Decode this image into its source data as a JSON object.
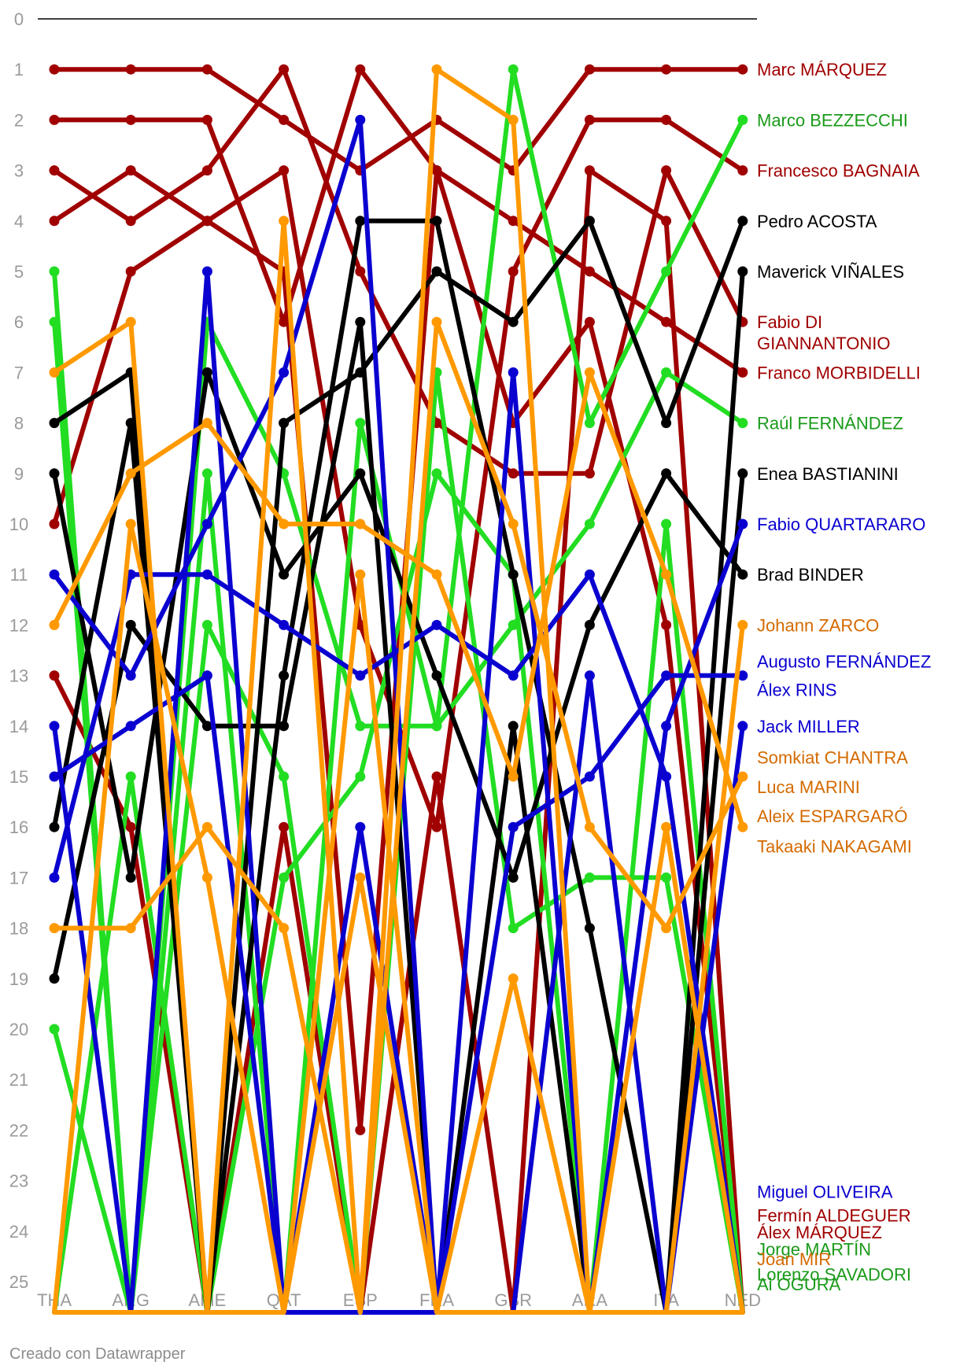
{
  "footer": {
    "credit": "Creado con Datawrapper"
  },
  "chart_data": {
    "type": "line",
    "title": "",
    "xlabel": "",
    "ylabel": "",
    "y_reversed": true,
    "ylim": [
      0,
      25
    ],
    "yticks": [
      0,
      1,
      2,
      3,
      4,
      5,
      6,
      7,
      8,
      9,
      10,
      11,
      12,
      13,
      14,
      15,
      16,
      17,
      18,
      19,
      20,
      21,
      22,
      23,
      24,
      25
    ],
    "categories": [
      "THA",
      "ARG",
      "AME",
      "QAT",
      "ESP",
      "FRA",
      "GBR",
      "ARA",
      "ITA",
      "NED"
    ],
    "colors": {
      "red": "#a00000",
      "green": "#22dd22",
      "black": "#000000",
      "blue": "#0a00d0",
      "orange": "#ff9900"
    },
    "label_colors": {
      "red": "#a00000",
      "green": "#1a9a1a",
      "black": "#000000",
      "blue": "#0a00d0",
      "orange": "#d46a00"
    },
    "series": [
      {
        "name": "Marc MÁRQUEZ",
        "color": "red",
        "values": [
          1,
          1,
          1,
          2,
          3,
          2,
          3,
          1,
          1,
          1
        ]
      },
      {
        "name": "Álex MÁRQUEZ",
        "color": "red",
        "values": [
          2,
          2,
          2,
          6,
          1,
          3,
          4,
          5,
          6,
          7
        ]
      },
      {
        "name": "Francesco BAGNAIA",
        "color": "red",
        "values": [
          3,
          4,
          3,
          1,
          5,
          8,
          9,
          9,
          3,
          6
        ]
      },
      {
        "name": "Franco MORBIDELLI",
        "color": "red",
        "values": [
          4,
          3,
          4,
          3,
          12,
          16,
          5,
          2,
          2,
          3
        ]
      },
      {
        "name": "Fabio DI GIANNANTONIO",
        "color": "red",
        "values": [
          10,
          5,
          4,
          5,
          22,
          3,
          8,
          6,
          12,
          24
        ]
      },
      {
        "name": "Fermín ALDEGUER",
        "color": "red",
        "values": [
          13,
          16,
          24,
          16,
          24,
          15,
          24,
          3,
          4,
          24
        ]
      },
      {
        "name": "Marco BEZZECCHI",
        "color": "green",
        "values": [
          5,
          24,
          9,
          24,
          8,
          14,
          1,
          8,
          5,
          2
        ]
      },
      {
        "name": "Raúl FERNÁNDEZ",
        "color": "green",
        "values": [
          6,
          24,
          6,
          9,
          14,
          14,
          12,
          10,
          7,
          8
        ]
      },
      {
        "name": "Lorenzo SAVADORI",
        "color": "green",
        "values": [
          20,
          24,
          12,
          15,
          24,
          7,
          18,
          17,
          17,
          24
        ]
      },
      {
        "name": "Ai OGURA",
        "color": "green",
        "values": [
          24,
          15,
          24,
          17,
          15,
          9,
          11,
          24,
          10,
          24
        ]
      },
      {
        "name": "Pedro ACOSTA",
        "color": "black",
        "values": [
          8,
          7,
          24,
          8,
          7,
          5,
          6,
          4,
          8,
          4
        ]
      },
      {
        "name": "Maverick VIÑALES",
        "color": "black",
        "values": [
          16,
          8,
          24,
          13,
          4,
          4,
          11,
          18,
          24,
          5
        ]
      },
      {
        "name": "Enea BASTIANINI",
        "color": "black",
        "values": [
          9,
          17,
          7,
          11,
          9,
          13,
          17,
          12,
          9,
          11
        ]
      },
      {
        "name": "Brad BINDER",
        "color": "black",
        "values": [
          19,
          12,
          14,
          14,
          6,
          24,
          14,
          24,
          24,
          9
        ]
      },
      {
        "name": "Fabio QUARTARARO",
        "color": "blue",
        "values": [
          14,
          24,
          5,
          24,
          16,
          24,
          7,
          24,
          14,
          10
        ]
      },
      {
        "name": "Jack MILLER",
        "color": "blue",
        "values": [
          11,
          13,
          10,
          7,
          2,
          24,
          16,
          15,
          13,
          13
        ]
      },
      {
        "name": "Miguel OLIVEIRA",
        "color": "blue",
        "values": [
          17,
          11,
          11,
          12,
          13,
          12,
          13,
          11,
          15,
          24
        ]
      },
      {
        "name": "Álex RINS",
        "color": "blue",
        "values": [
          15,
          14,
          13,
          24,
          24,
          24,
          24,
          13,
          24,
          14
        ]
      },
      {
        "name": "Johann ZARCO",
        "color": "orange",
        "values": [
          7,
          6,
          24,
          4,
          24,
          1,
          2,
          24,
          24,
          12
        ]
      },
      {
        "name": "Aleix ESPARGARÓ",
        "color": "orange",
        "values": [
          12,
          9,
          8,
          10,
          10,
          11,
          15,
          7,
          11,
          16
        ]
      },
      {
        "name": "Luca MARINI",
        "color": "orange",
        "values": [
          18,
          18,
          16,
          18,
          24,
          6,
          10,
          16,
          18,
          15
        ]
      },
      {
        "name": "Joan MIR",
        "color": "orange",
        "values": [
          24,
          10,
          17,
          24,
          11,
          24,
          19,
          24,
          16,
          24
        ]
      },
      {
        "name": "Takaaki NAKAGAMI",
        "color": "orange",
        "values": [
          24,
          24,
          24,
          24,
          17,
          24,
          24,
          24,
          24,
          24
        ]
      }
    ],
    "right_labels": [
      {
        "text": "Marc MÁRQUEZ",
        "color": "red",
        "y": 1
      },
      {
        "text": "Marco BEZZECCHI",
        "color": "green",
        "y": 2
      },
      {
        "text": "Francesco BAGNAIA",
        "color": "red",
        "y": 3
      },
      {
        "text": "Pedro ACOSTA",
        "color": "black",
        "y": 4
      },
      {
        "text": "Maverick VIÑALES",
        "color": "black",
        "y": 5
      },
      {
        "text": "Fabio DI",
        "color": "red",
        "y": 6
      },
      {
        "text": "GIANNANTONIO",
        "color": "red",
        "y": 6.42
      },
      {
        "text": "Franco MORBIDELLI",
        "color": "red",
        "y": 7
      },
      {
        "text": "Raúl FERNÁNDEZ",
        "color": "green",
        "y": 8
      },
      {
        "text": "Enea BASTIANINI",
        "color": "black",
        "y": 9
      },
      {
        "text": "Fabio QUARTARARO",
        "color": "blue",
        "y": 10
      },
      {
        "text": "Brad BINDER",
        "color": "black",
        "y": 11
      },
      {
        "text": "Johann ZARCO",
        "color": "orange",
        "y": 12
      },
      {
        "text": "Augusto FERNÁNDEZ",
        "color": "blue",
        "y": 12.72
      },
      {
        "text": "Álex RINS",
        "color": "blue",
        "y": 13.28
      },
      {
        "text": "Jack MILLER",
        "color": "blue",
        "y": 14
      },
      {
        "text": "Somkiat CHANTRA",
        "color": "orange",
        "y": 14.62
      },
      {
        "text": "Luca MARINI",
        "color": "orange",
        "y": 15.2
      },
      {
        "text": "Aleix ESPARGARÓ",
        "color": "orange",
        "y": 15.78
      },
      {
        "text": "Takaaki NAKAGAMI",
        "color": "orange",
        "y": 16.38
      },
      {
        "text": "Miguel OLIVEIRA",
        "color": "blue",
        "y": 23.22
      },
      {
        "text": "Fermín ALDEGUER",
        "color": "red",
        "y": 23.68
      },
      {
        "text": "Álex MÁRQUEZ",
        "color": "red",
        "y": 24.02
      },
      {
        "text": "Jorge MARTÍN",
        "color": "green",
        "y": 24.35
      },
      {
        "text": "Joan MIR",
        "color": "orange",
        "y": 24.55
      },
      {
        "text": "Lorenzo SAVADORI",
        "color": "green",
        "y": 24.85
      },
      {
        "text": "Ai OGURA",
        "color": "green",
        "y": 25.05
      }
    ]
  }
}
